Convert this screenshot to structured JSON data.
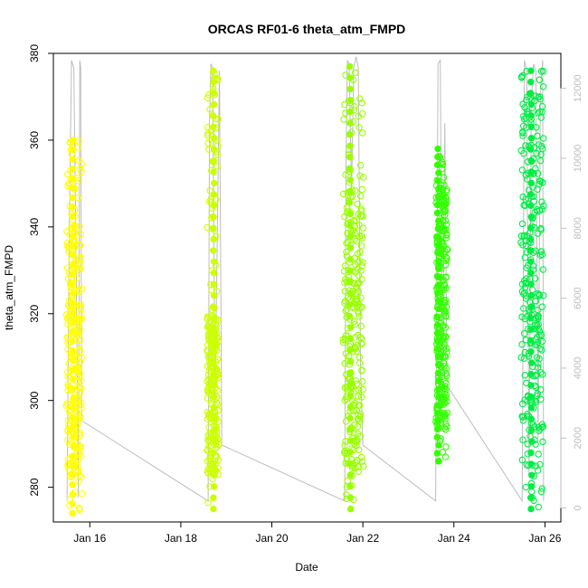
{
  "chart_data": {
    "type": "scatter",
    "title": "ORCAS RF01-6 theta_atm_FMPD",
    "xlabel": "Date",
    "ylabel": "theta_atm_FMPD",
    "xlim": [
      15.2,
      26.35
    ],
    "ylim": [
      272,
      380
    ],
    "y2lim": [
      -400,
      13000
    ],
    "x_ticks": [
      {
        "value": 16,
        "label": "Jan 16"
      },
      {
        "value": 18,
        "label": "Jan 18"
      },
      {
        "value": 20,
        "label": "Jan 20"
      },
      {
        "value": 22,
        "label": "Jan 22"
      },
      {
        "value": 24,
        "label": "Jan 24"
      },
      {
        "value": 26,
        "label": "Jan 26"
      }
    ],
    "y_ticks": [
      280,
      300,
      320,
      340,
      360,
      380
    ],
    "y2_ticks": [
      0,
      2000,
      4000,
      6000,
      8000,
      10000,
      12000
    ],
    "colors": {
      "flight1": "#ffff00",
      "flight2": "#ccff00",
      "flight3": "#99ff00",
      "flight4": "#33ff00",
      "flight5": "#00ee44",
      "altitude_line": "#bdbdbd"
    },
    "flights": [
      {
        "color_key": "flight1",
        "x_start": 15.5,
        "x_end": 15.82,
        "y_min": 274,
        "y_max": 360,
        "dense_top": 340,
        "peak_x": 15.63
      },
      {
        "color_key": "flight2",
        "x_start": 18.58,
        "x_end": 18.82,
        "y_min": 275,
        "y_max": 376,
        "dense_top": 320,
        "peak_x": 18.72
      },
      {
        "color_key": "flight3",
        "x_start": 21.58,
        "x_end": 22.0,
        "y_min": 275,
        "y_max": 377,
        "dense_top": 352,
        "peak_x": 21.72
      },
      {
        "color_key": "flight4",
        "x_start": 23.62,
        "x_end": 23.85,
        "y_min": 286,
        "y_max": 358,
        "dense_top": 350,
        "peak_x": 23.65
      },
      {
        "color_key": "flight5",
        "x_start": 25.48,
        "x_end": 25.97,
        "y_min": 275,
        "y_max": 376,
        "dense_top": 376,
        "peak_x": 25.7
      }
    ],
    "altitude_series": {
      "axis": "right",
      "x": [
        15.5,
        15.55,
        15.6,
        15.62,
        15.65,
        15.7,
        15.75,
        15.78,
        15.8,
        15.82,
        18.6,
        18.63,
        18.66,
        18.7,
        18.75,
        18.8,
        18.85,
        18.9,
        21.6,
        21.63,
        21.66,
        21.7,
        21.75,
        21.8,
        21.85,
        21.9,
        21.95,
        22.0,
        23.6,
        23.65,
        23.7,
        23.75,
        23.8,
        23.85,
        25.5,
        25.55,
        25.6,
        25.65,
        25.7,
        25.75,
        25.8,
        25.85,
        25.9,
        25.95,
        25.97
      ],
      "y": [
        200,
        8000,
        12800,
        12700,
        12600,
        7000,
        300,
        12800,
        12600,
        2500,
        200,
        11000,
        12700,
        12600,
        3000,
        7500,
        12500,
        1800,
        200,
        10000,
        12800,
        12700,
        9000,
        12600,
        12900,
        12600,
        4000,
        1800,
        200,
        12700,
        12800,
        3000,
        11000,
        3500,
        200,
        12800,
        12500,
        900,
        11500,
        12700,
        12500,
        2000,
        12000,
        12800,
        200
      ]
    }
  }
}
